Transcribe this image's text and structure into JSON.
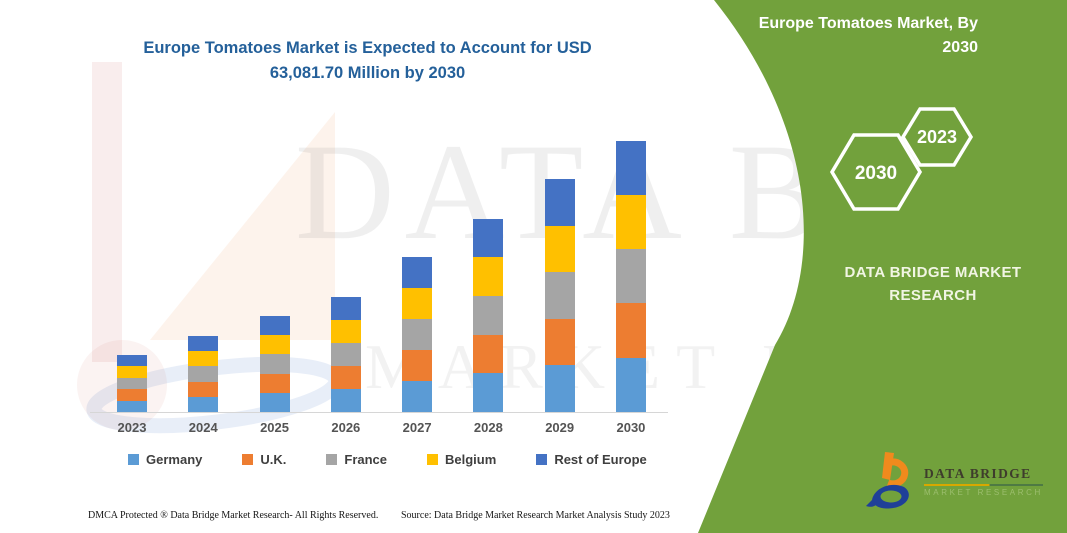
{
  "theme": {
    "panel_green": "#72A13C",
    "title_blue": "#24609A",
    "germany_blue": "#5B9BD5",
    "uk_orange": "#ED7D31",
    "france_gray": "#A5A5A5",
    "belgium_yellow": "#FFC000",
    "rest_of_europe_blue": "#4472C4"
  },
  "title": {
    "lines": [
      "Europe Tomatoes Market is Expected to Account for USD",
      "63,081.70 Million by 2030"
    ]
  },
  "chart_data": {
    "type": "bar",
    "stacked": true,
    "units": "USD Million",
    "title": "Europe Tomatoes Market is Expected to Account for USD 63,081.70 Million by 2030",
    "xlabel": "",
    "ylabel": "",
    "categories": [
      "2023",
      "2024",
      "2025",
      "2026",
      "2027",
      "2028",
      "2029",
      "2030"
    ],
    "series": [
      {
        "name": "Germany",
        "color": "#5B9BD5",
        "values": [
          2660,
          3532,
          4450,
          5368,
          7204,
          8992,
          10828,
          12616.34
        ]
      },
      {
        "name": "U.K.",
        "color": "#ED7D31",
        "values": [
          2660,
          3532,
          4450,
          5368,
          7204,
          8992,
          10828,
          12616.34
        ]
      },
      {
        "name": "France",
        "color": "#A5A5A5",
        "values": [
          2660,
          3532,
          4450,
          5368,
          7204,
          8992,
          10828,
          12616.34
        ]
      },
      {
        "name": "Belgium",
        "color": "#FFC000",
        "values": [
          2660,
          3532,
          4450,
          5368,
          7204,
          8992,
          10828,
          12616.34
        ]
      },
      {
        "name": "Rest of Europe",
        "color": "#4472C4",
        "values": [
          2660,
          3532,
          4450,
          5368,
          7204,
          8992,
          10828,
          12616.34
        ]
      }
    ],
    "totals_estimated": [
      13300,
      17660,
      22250,
      26840,
      36020,
      44960,
      54140,
      63081.7
    ],
    "ylim": [
      0,
      65000
    ],
    "gridlines": false,
    "legend_position": "bottom"
  },
  "side_panel": {
    "heading_lines": [
      "Europe Tomatoes Market, By",
      "2030"
    ],
    "hexagons": [
      {
        "label": "2030"
      },
      {
        "label": "2023"
      }
    ],
    "brand_lines": [
      "DATA BRIDGE MARKET",
      "RESEARCH"
    ]
  },
  "logo": {
    "title": "DATA BRIDGE",
    "subtitle": "MARKET RESEARCH"
  },
  "watermark": {
    "line1": "DATA BRIDGE",
    "line2": "MARKET RESEARCH"
  },
  "footer": {
    "dmca": "DMCA Protected ® Data Bridge Market Research-  All Rights Reserved.",
    "source": "Source: Data Bridge Market Research  Market Analysis Study 2023"
  }
}
